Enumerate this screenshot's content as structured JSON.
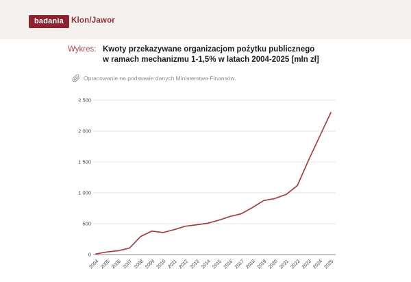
{
  "header": {
    "badge": "badania",
    "brand": "Klon/Jawor"
  },
  "title": {
    "prefix": "Wykres:",
    "line1": "Kwoty przekazywane organizacjom pożytku publicznego",
    "line2": "w ramach mechanizmu 1-1,5% w latach 2004-2025 [mln zł]"
  },
  "source": {
    "text": "Opracowanie na podstawie danych Ministerstwa Finansów."
  },
  "colors": {
    "badge_bg": "#8d2232",
    "brand_text": "#962d34",
    "accent_red": "#ad4448",
    "line_color": "#a43e40",
    "header_bg": "#f5f1ee"
  },
  "chart_data": {
    "type": "line",
    "title": "Kwoty przekazywane organizacjom pożytku publicznego w ramach mechanizmu 1-1,5% w latach 2004-2025 [mln zł]",
    "xlabel": "",
    "ylabel": "",
    "x": [
      2004,
      2005,
      2006,
      2007,
      2008,
      2009,
      2010,
      2011,
      2012,
      2013,
      2014,
      2015,
      2016,
      2017,
      2018,
      2019,
      2020,
      2021,
      2022,
      2023,
      2024,
      2025
    ],
    "values": [
      10,
      42,
      62,
      105,
      292,
      380,
      357,
      403,
      459,
      482,
      507,
      558,
      618,
      661,
      762,
      874,
      908,
      973,
      1115,
      1525,
      1915,
      2300
    ],
    "ylim": [
      0,
      2500
    ],
    "yticks": [
      0,
      500,
      1000,
      1500,
      2000,
      2500
    ],
    "ytick_labels": [
      "0",
      "500",
      "1 000",
      "1 500",
      "2 000",
      "2 500"
    ],
    "grid": "horizontal",
    "legend": "none",
    "line_color": "#a43e40"
  }
}
